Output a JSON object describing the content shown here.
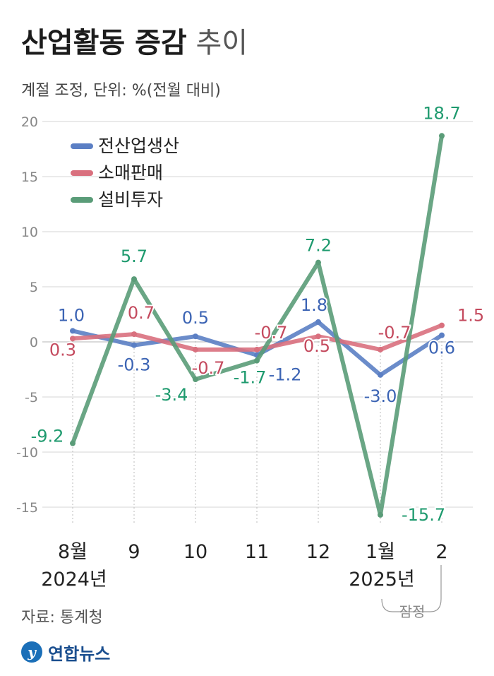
{
  "title_bold": "산업활동 증감",
  "title_light": "추이",
  "subtitle": "계절 조정, 단위: %(전월 대비)",
  "source": "자료: 통계청",
  "logo_text": "연합뉴스",
  "logo_icon": "yonhap-logo-icon",
  "preliminary_label": "잠정",
  "chart_data": {
    "type": "line",
    "categories": [
      "8월",
      "9",
      "10",
      "11",
      "12",
      "1월",
      "2"
    ],
    "year_labels": [
      {
        "category_index": 0,
        "text": "2024년"
      },
      {
        "category_index": 5,
        "text": "2025년"
      }
    ],
    "ylim": [
      -17,
      21
    ],
    "yticks": [
      20,
      15,
      10,
      5,
      0,
      -5,
      -10,
      -15
    ],
    "ytick_labels": [
      "20",
      "15",
      "10",
      "5",
      "0",
      "-5",
      "-10",
      "-15"
    ],
    "grid": true,
    "legend_position": "top-left",
    "series": [
      {
        "name": "전산업생산",
        "color": "#5b7fc4",
        "values": [
          1.0,
          -0.3,
          0.5,
          -1.2,
          1.8,
          -3.0,
          0.6
        ],
        "labels": [
          "1.0",
          "-0.3",
          "0.5",
          "-1.2",
          "1.8",
          "-3.0",
          "0.6"
        ]
      },
      {
        "name": "소매판매",
        "color": "#d9707e",
        "values": [
          0.3,
          0.7,
          -0.7,
          -0.7,
          0.5,
          -0.7,
          1.5
        ],
        "labels": [
          "0.3",
          "0.7",
          "-0.7",
          "-0.7",
          "0.5",
          "-0.7",
          "1.5"
        ]
      },
      {
        "name": "설비투자",
        "color": "#5a9c78",
        "values": [
          -9.2,
          5.7,
          -3.4,
          -1.7,
          7.2,
          -15.7,
          18.7
        ],
        "labels": [
          "-9.2",
          "5.7",
          "-3.4",
          "-1.7",
          "7.2",
          "-15.7",
          "18.7"
        ]
      }
    ],
    "label_colors": {
      "전산업생산": "#3c64b4",
      "소매판매": "#c44a5e",
      "설비투자": "#1e9a6e"
    }
  }
}
